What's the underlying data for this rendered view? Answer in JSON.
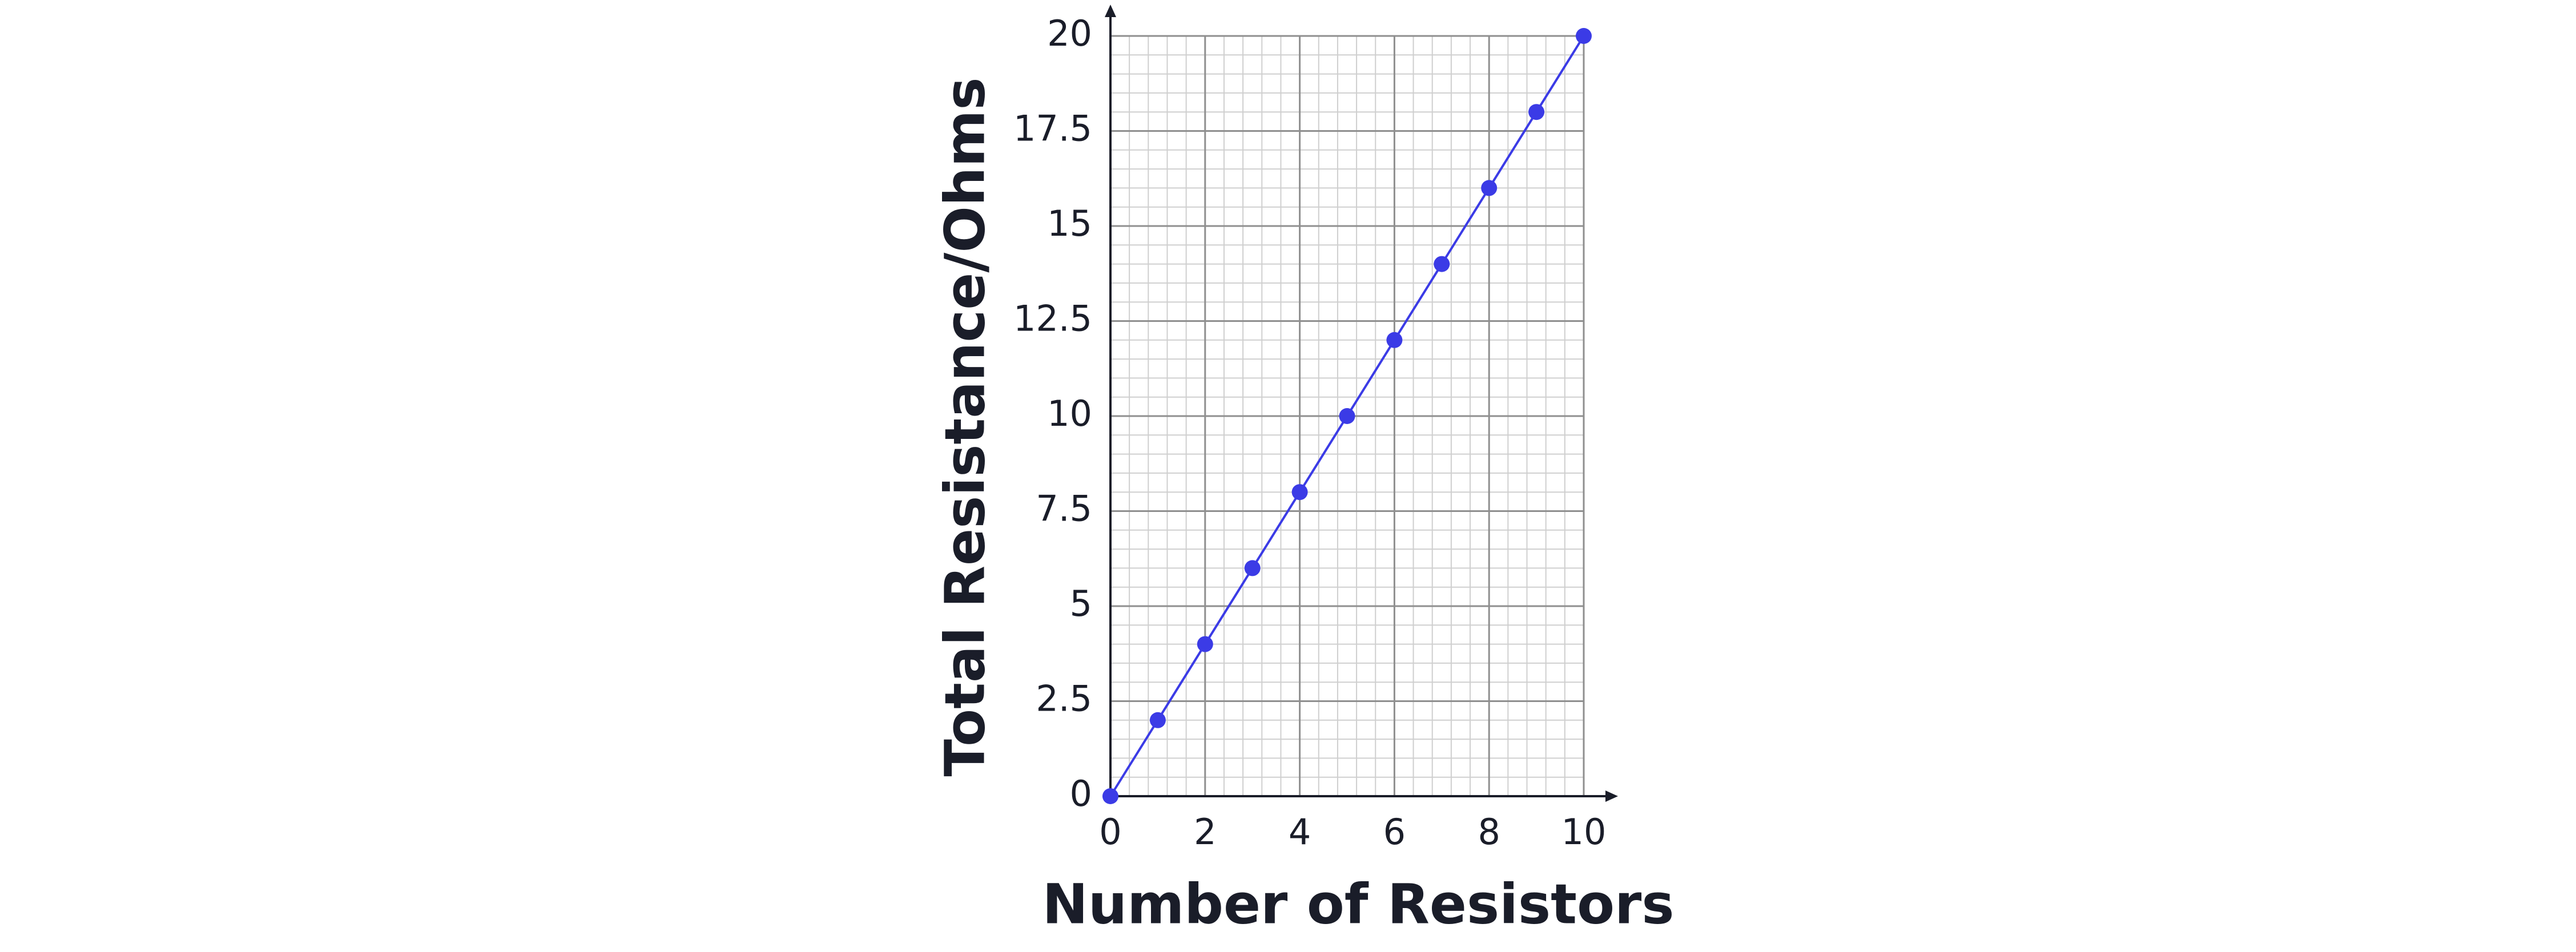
{
  "chart_data": {
    "type": "line",
    "x_label": "Number of Resistors",
    "y_label": "Total Resistance/Ohms",
    "x": [
      0,
      1,
      2,
      3,
      4,
      5,
      6,
      7,
      8,
      9,
      10
    ],
    "series": [
      {
        "color": "#3b3be6",
        "values": [
          0,
          2,
          4,
          6,
          8,
          10,
          12,
          14,
          16,
          18,
          20
        ]
      }
    ],
    "xlim": [
      0,
      10
    ],
    "xticks": [
      0,
      2,
      4,
      6,
      8,
      10
    ],
    "ylim": [
      0,
      20
    ],
    "yticks": [
      0,
      2.5,
      5,
      7.5,
      10,
      12.5,
      15,
      17.5,
      20
    ],
    "grid": true,
    "minor_grid": 5,
    "markers": true
  }
}
